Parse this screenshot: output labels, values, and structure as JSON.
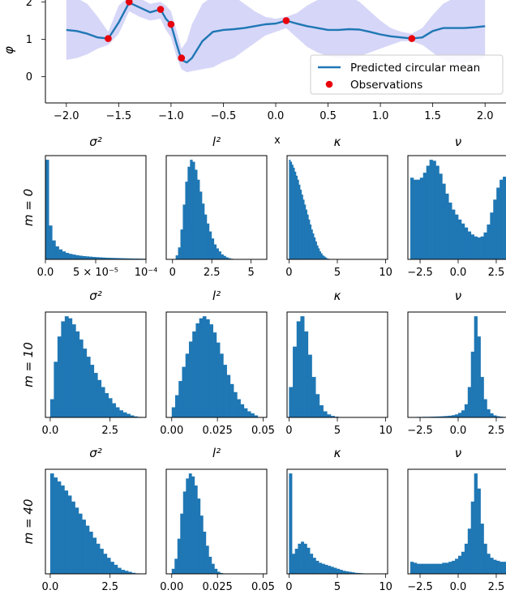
{
  "colors": {
    "line": "#1f77b4",
    "band": "#c8c8f5",
    "observation": "#e8000b",
    "hist": "#1f77b4"
  },
  "chart_data": [
    {
      "type": "line",
      "title": "",
      "xlabel": "x",
      "ylabel": "φ",
      "xlim": [
        -2.2,
        2.2
      ],
      "ylim": [
        -0.7,
        2.05
      ],
      "xticks": [
        "−2.0",
        "−1.5",
        "−1.0",
        "−0.5",
        "0.0",
        "0.5",
        "1.0",
        "1.5",
        "2.0"
      ],
      "xtick_values": [
        -2.0,
        -1.5,
        -1.0,
        -0.5,
        0.0,
        0.5,
        1.0,
        1.5,
        2.0
      ],
      "yticks": [
        "0",
        "1",
        "2"
      ],
      "ytick_values": [
        0,
        1,
        2
      ],
      "legend": [
        "Predicted circular mean",
        "Observations"
      ],
      "legend_position": "lower-right",
      "series": [
        {
          "name": "Predicted circular mean",
          "x": [
            -2.0,
            -1.9,
            -1.8,
            -1.7,
            -1.6,
            -1.5,
            -1.4,
            -1.3,
            -1.2,
            -1.1,
            -1.05,
            -1.0,
            -0.95,
            -0.9,
            -0.85,
            -0.8,
            -0.7,
            -0.6,
            -0.5,
            -0.4,
            -0.3,
            -0.2,
            -0.1,
            0.0,
            0.1,
            0.2,
            0.3,
            0.4,
            0.5,
            0.6,
            0.7,
            0.8,
            0.9,
            1.0,
            1.1,
            1.2,
            1.3,
            1.4,
            1.5,
            1.6,
            1.7,
            1.8,
            1.9,
            2.0
          ],
          "y": [
            1.25,
            1.22,
            1.15,
            1.05,
            1.02,
            1.45,
            1.98,
            1.85,
            1.72,
            1.8,
            1.55,
            1.4,
            0.9,
            0.45,
            0.38,
            0.5,
            0.95,
            1.2,
            1.25,
            1.27,
            1.3,
            1.35,
            1.4,
            1.42,
            1.5,
            1.42,
            1.35,
            1.3,
            1.25,
            1.25,
            1.27,
            1.26,
            1.2,
            1.13,
            1.08,
            1.05,
            1.02,
            1.05,
            1.22,
            1.3,
            1.3,
            1.3,
            1.32,
            1.35
          ]
        },
        {
          "name": "Observations",
          "x": [
            -1.6,
            -1.4,
            -1.1,
            -1.0,
            -0.9,
            0.1,
            1.3
          ],
          "y": [
            1.02,
            2.0,
            1.8,
            1.4,
            0.5,
            1.5,
            1.02
          ]
        },
        {
          "name": "",
          "x": [
            -2.0,
            -1.9,
            -1.8,
            -1.7,
            -1.6,
            -1.5,
            -1.4,
            -1.3,
            -1.2,
            -1.1,
            -1.05,
            -1.0,
            -0.95,
            -0.9,
            -0.85,
            -0.8,
            -0.7,
            -0.6,
            -0.5,
            -0.4,
            -0.3,
            -0.2,
            -0.1,
            0.0,
            0.1,
            0.2,
            0.3,
            0.4,
            0.5,
            0.6,
            0.7,
            0.8,
            0.9,
            1.0,
            1.1,
            1.2,
            1.3,
            1.4,
            1.5,
            1.6,
            1.7,
            1.8,
            1.9,
            2.0
          ],
          "upper": [
            2.15,
            2.1,
            1.95,
            1.6,
            1.2,
            1.9,
            2.15,
            2.1,
            1.95,
            2.0,
            1.9,
            1.75,
            1.25,
            0.75,
            0.95,
            1.4,
            1.95,
            2.15,
            2.2,
            2.15,
            1.95,
            1.75,
            1.6,
            1.55,
            1.6,
            1.7,
            1.9,
            2.05,
            2.2,
            2.2,
            2.15,
            2.0,
            1.75,
            1.5,
            1.3,
            1.2,
            1.15,
            1.3,
            1.65,
            1.95,
            2.1,
            2.2,
            2.2,
            2.2
          ],
          "lower": [
            0.45,
            0.5,
            0.6,
            0.75,
            0.85,
            1.15,
            1.75,
            1.6,
            1.5,
            1.55,
            1.25,
            1.05,
            0.55,
            0.2,
            0.12,
            0.15,
            0.2,
            0.25,
            0.4,
            0.5,
            0.7,
            0.9,
            1.1,
            1.2,
            1.3,
            1.05,
            0.8,
            0.65,
            0.55,
            0.5,
            0.5,
            0.55,
            0.65,
            0.75,
            0.85,
            0.95,
            0.95,
            0.85,
            0.65,
            0.45,
            0.35,
            0.35,
            0.45,
            0.5
          ]
        }
      ]
    },
    {
      "type": "bar",
      "grid": {
        "row_labels": [
          "m = 0",
          "m = 10",
          "m = 40"
        ],
        "col_titles": [
          "σ²",
          "l²",
          "κ",
          "ν"
        ]
      },
      "columns": [
        {
          "title": "σ²",
          "ticks_by_row": [
            [
              {
                "v": 0,
                "label": "0.0"
              },
              {
                "v": 5e-05,
                "label": "5 × 10⁻⁵"
              },
              {
                "v": 0.0001,
                "label": "10⁻⁴"
              }
            ],
            [
              {
                "v": 0,
                "label": "0.0"
              },
              {
                "v": 2.5,
                "label": "2.5"
              }
            ],
            [
              {
                "v": 0,
                "label": "0.0"
              },
              {
                "v": 2.5,
                "label": "2.5"
              }
            ]
          ],
          "xlim_by_row": [
            [
              0,
              0.0001
            ],
            [
              -0.2,
              4.0
            ],
            [
              -0.2,
              4.0
            ]
          ]
        },
        {
          "title": "l²",
          "ticks_by_row": [
            [
              {
                "v": 0,
                "label": "0"
              },
              {
                "v": 2.5,
                "label": "2.5"
              },
              {
                "v": 5,
                "label": "5"
              }
            ],
            [
              {
                "v": 0,
                "label": "0.00"
              },
              {
                "v": 0.025,
                "label": "0.025"
              },
              {
                "v": 0.05,
                "label": "0.05"
              }
            ],
            [
              {
                "v": 0,
                "label": "0.00"
              },
              {
                "v": 0.025,
                "label": "0.025"
              },
              {
                "v": 0.05,
                "label": "0.05"
              }
            ]
          ],
          "xlim_by_row": [
            [
              -0.4,
              6.0
            ],
            [
              -0.003,
              0.052
            ],
            [
              -0.003,
              0.052
            ]
          ]
        },
        {
          "title": "κ",
          "ticks_by_row": [
            [
              {
                "v": 0,
                "label": "0"
              },
              {
                "v": 5,
                "label": "5"
              },
              {
                "v": 10,
                "label": "10"
              }
            ],
            [
              {
                "v": 0,
                "label": "0"
              },
              {
                "v": 5,
                "label": "5"
              },
              {
                "v": 10,
                "label": "10"
              }
            ],
            [
              {
                "v": 0,
                "label": "0"
              },
              {
                "v": 5,
                "label": "5"
              },
              {
                "v": 10,
                "label": "10"
              }
            ]
          ],
          "xlim_by_row": [
            [
              -0.2,
              10.2
            ],
            [
              -0.2,
              10.2
            ],
            [
              -0.2,
              10.2
            ]
          ]
        },
        {
          "title": "ν",
          "ticks_by_row": [
            [
              {
                "v": -2.5,
                "label": "−2.5"
              },
              {
                "v": 0,
                "label": "0.0"
              },
              {
                "v": 2.5,
                "label": "2.5"
              }
            ],
            [
              {
                "v": -2.5,
                "label": "−2.5"
              },
              {
                "v": 0,
                "label": "0.0"
              },
              {
                "v": 2.5,
                "label": "2.5"
              }
            ],
            [
              {
                "v": -2.5,
                "label": "−2.5"
              },
              {
                "v": 0,
                "label": "0.0"
              },
              {
                "v": 2.5,
                "label": "2.5"
              }
            ]
          ],
          "xlim_by_row": [
            [
              -3.3,
              3.3
            ],
            [
              -3.3,
              3.3
            ],
            [
              -3.3,
              3.3
            ]
          ]
        }
      ],
      "histograms": [
        [
          {
            "x_start": 0,
            "x_end": 0.0001,
            "values": [
              1.0,
              0.34,
              0.19,
              0.13,
              0.1,
              0.08,
              0.065,
              0.055,
              0.048,
              0.042,
              0.037,
              0.033,
              0.03,
              0.027,
              0.024,
              0.022,
              0.02,
              0.018,
              0.016,
              0.015,
              0.014,
              0.013,
              0.012,
              0.011,
              0.01,
              0.009,
              0.008,
              0.008,
              0.007,
              0.006
            ]
          },
          {
            "x_start": 0.2,
            "x_end": 4.0,
            "values": [
              0.04,
              0.12,
              0.3,
              0.55,
              0.78,
              0.93,
              1.0,
              0.98,
              0.9,
              0.8,
              0.68,
              0.56,
              0.45,
              0.36,
              0.28,
              0.21,
              0.15,
              0.11,
              0.08,
              0.05,
              0.035,
              0.02,
              0.012,
              0.006,
              0.003
            ]
          },
          {
            "x_start": 0.0,
            "x_end": 4.3,
            "values": [
              1.0,
              0.98,
              0.95,
              0.92,
              0.88,
              0.84,
              0.8,
              0.75,
              0.7,
              0.65,
              0.6,
              0.55,
              0.5,
              0.45,
              0.4,
              0.35,
              0.3,
              0.26,
              0.22,
              0.18,
              0.14,
              0.11,
              0.08,
              0.06,
              0.04,
              0.03,
              0.02,
              0.01,
              0.006,
              0.003
            ]
          },
          {
            "x_start": -3.14,
            "x_end": 3.14,
            "values": [
              0.82,
              0.8,
              0.8,
              0.82,
              0.87,
              0.94,
              1.0,
              0.99,
              0.94,
              0.86,
              0.76,
              0.66,
              0.57,
              0.5,
              0.45,
              0.4,
              0.36,
              0.32,
              0.28,
              0.25,
              0.23,
              0.22,
              0.23,
              0.27,
              0.35,
              0.47,
              0.6,
              0.72,
              0.8,
              0.83
            ]
          }
        ],
        [
          {
            "x_start": 0.0,
            "x_end": 3.8,
            "values": [
              0.18,
              0.55,
              0.8,
              0.95,
              1.0,
              0.98,
              0.92,
              0.85,
              0.77,
              0.68,
              0.6,
              0.52,
              0.44,
              0.37,
              0.3,
              0.24,
              0.19,
              0.14,
              0.1,
              0.07,
              0.05,
              0.035,
              0.02,
              0.01,
              0.005
            ]
          },
          {
            "x_start": 0.0,
            "x_end": 0.047,
            "values": [
              0.1,
              0.22,
              0.36,
              0.5,
              0.63,
              0.75,
              0.85,
              0.93,
              0.98,
              1.0,
              0.97,
              0.92,
              0.84,
              0.74,
              0.63,
              0.52,
              0.42,
              0.33,
              0.25,
              0.18,
              0.13,
              0.09,
              0.06,
              0.04,
              0.02
            ]
          },
          {
            "x_start": 0.0,
            "x_end": 5.5,
            "values": [
              0.3,
              0.7,
              0.95,
              1.0,
              0.85,
              0.62,
              0.4,
              0.23,
              0.12,
              0.06,
              0.03,
              0.015,
              0.007,
              0.003
            ]
          },
          {
            "x_start": -3.14,
            "x_end": 3.14,
            "values": [
              0.004,
              0.004,
              0.005,
              0.005,
              0.006,
              0.006,
              0.007,
              0.008,
              0.009,
              0.01,
              0.012,
              0.014,
              0.017,
              0.022,
              0.03,
              0.045,
              0.07,
              0.13,
              0.3,
              0.65,
              1.0,
              0.8,
              0.4,
              0.18,
              0.08,
              0.04,
              0.02,
              0.012,
              0.008,
              0.005
            ]
          }
        ],
        [
          {
            "x_start": 0.0,
            "x_end": 3.7,
            "values": [
              1.0,
              0.96,
              0.92,
              0.88,
              0.83,
              0.78,
              0.72,
              0.66,
              0.6,
              0.54,
              0.48,
              0.42,
              0.36,
              0.3,
              0.25,
              0.2,
              0.16,
              0.12,
              0.09,
              0.06,
              0.04,
              0.03,
              0.02,
              0.01,
              0.005
            ]
          },
          {
            "x_start": 0.0,
            "x_end": 0.028,
            "values": [
              0.05,
              0.15,
              0.35,
              0.6,
              0.82,
              0.95,
              1.0,
              0.97,
              0.88,
              0.75,
              0.58,
              0.42,
              0.28,
              0.17,
              0.1,
              0.05,
              0.02,
              0.008
            ]
          },
          {
            "x_start": 0.0,
            "x_end": 8.0,
            "values": [
              1.0,
              0.2,
              0.25,
              0.3,
              0.32,
              0.3,
              0.26,
              0.2,
              0.16,
              0.13,
              0.11,
              0.1,
              0.09,
              0.08,
              0.07,
              0.06,
              0.05,
              0.04,
              0.03,
              0.025,
              0.02,
              0.015,
              0.01,
              0.008,
              0.006,
              0.004
            ]
          },
          {
            "x_start": -3.14,
            "x_end": 3.14,
            "values": [
              0.12,
              0.11,
              0.1,
              0.1,
              0.1,
              0.1,
              0.1,
              0.1,
              0.1,
              0.1,
              0.11,
              0.11,
              0.12,
              0.13,
              0.15,
              0.18,
              0.22,
              0.3,
              0.45,
              0.72,
              1.0,
              0.85,
              0.5,
              0.3,
              0.2,
              0.16,
              0.14,
              0.13,
              0.12,
              0.12
            ]
          }
        ]
      ]
    }
  ]
}
